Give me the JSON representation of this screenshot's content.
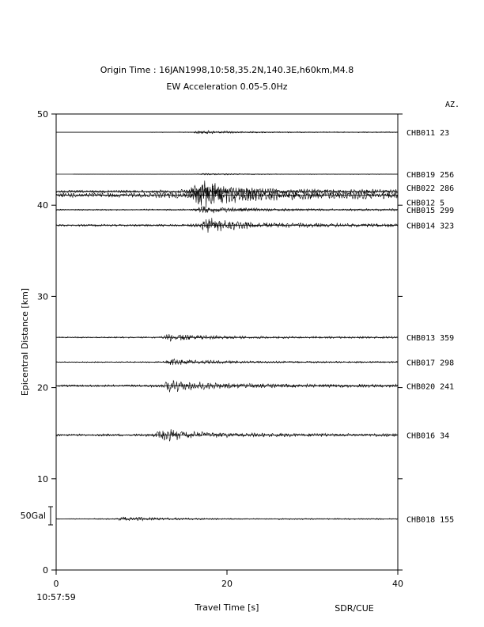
{
  "header": {
    "title": "Origin Time : 16JAN1998,10:58,35.2N,140.3E,h60km,M4.8",
    "subtitle": "EW Acceleration 0.05-5.0Hz",
    "az_label": "AZ."
  },
  "footer": {
    "start_time": "10:57:59",
    "credit": "SDR/CUE"
  },
  "chart_data": {
    "type": "line",
    "title": "Origin Time : 16JAN1998,10:58,35.2N,140.3E,h60km,M4.8",
    "subtitle": "EW Acceleration 0.05-5.0Hz",
    "xlabel": "Travel Time [s]",
    "ylabel": "Epicentral Distance [km]",
    "xlim": [
      0,
      40
    ],
    "ylim": [
      0,
      50
    ],
    "xticks": [
      0,
      20,
      40
    ],
    "yticks": [
      0,
      10,
      20,
      30,
      40,
      50
    ],
    "scale_bar": "50Gal",
    "grid": false,
    "series": [
      {
        "name": "CHB011",
        "azimuth": "23",
        "distance": 48.0,
        "start": 11.0,
        "end": 40,
        "arrival": 16.0,
        "amp": 0.25
      },
      {
        "name": "CHB019",
        "azimuth": "256",
        "distance": 43.4,
        "start": 2.0,
        "end": 40,
        "arrival": 16.5,
        "amp": 0.15
      },
      {
        "name": "CHB022",
        "azimuth": "286",
        "distance": 41.5,
        "start": 0.0,
        "end": 40,
        "arrival": 15.5,
        "amp": 1.2
      },
      {
        "name": "CHB012",
        "azimuth": "5",
        "distance": 41.1,
        "start": 0.0,
        "end": 40,
        "arrival": 16.0,
        "amp": 2.0
      },
      {
        "name": "CHB015",
        "azimuth": "299",
        "distance": 39.5,
        "start": 0.0,
        "end": 40,
        "arrival": 16.2,
        "amp": 0.55
      },
      {
        "name": "CHB014",
        "azimuth": "323",
        "distance": 37.8,
        "start": 0.0,
        "end": 40,
        "arrival": 16.8,
        "amp": 1.0
      },
      {
        "name": "CHB013",
        "azimuth": "359",
        "distance": 25.5,
        "start": 0.0,
        "end": 40,
        "arrival": 12.5,
        "amp": 0.55
      },
      {
        "name": "CHB017",
        "azimuth": "298",
        "distance": 22.8,
        "start": 0.0,
        "end": 40,
        "arrival": 12.8,
        "amp": 0.45
      },
      {
        "name": "CHB020",
        "azimuth": "241",
        "distance": 20.2,
        "start": 0.0,
        "end": 40,
        "arrival": 12.5,
        "amp": 0.9
      },
      {
        "name": "CHB016",
        "azimuth": "34",
        "distance": 14.8,
        "start": 0.0,
        "end": 40,
        "arrival": 11.5,
        "amp": 0.9
      },
      {
        "name": "CHB018",
        "azimuth": "155",
        "distance": 5.6,
        "start": 0.0,
        "end": 40,
        "arrival": 7.0,
        "amp": 0.35
      }
    ]
  }
}
